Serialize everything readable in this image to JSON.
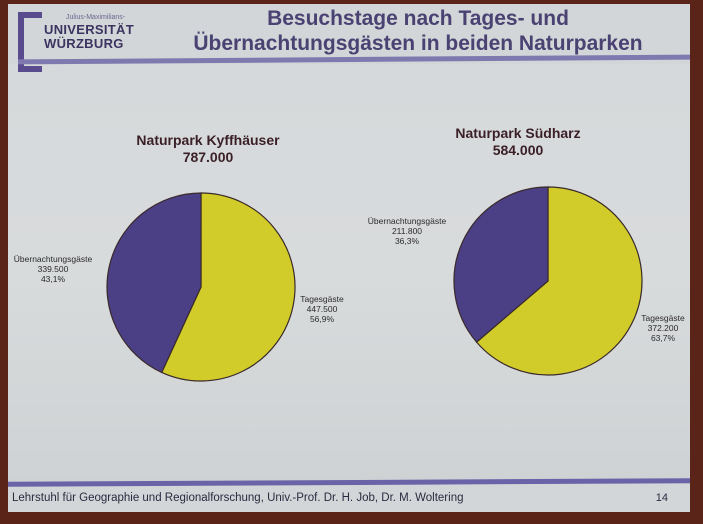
{
  "slide": {
    "logo": {
      "small_text": "Julius-Maximilians-",
      "line1": "UNIVERSITÄT",
      "line2": "WÜRZBURG"
    },
    "title_line1": "Besuchstage nach Tages- und",
    "title_line2": "Übernachtungsgästen in beiden Naturparken",
    "footer": "Lehrstuhl für Geographie und Regionalforschung, Univ.-Prof. Dr. H. Job, Dr. M. Woltering",
    "page_number": "14"
  },
  "colors": {
    "uebernachtung": "#4b3f86",
    "tages": "#d2cc2a",
    "accent": "#6a63a8"
  },
  "charts": [
    {
      "title": "Naturpark Kyffhäuser",
      "total": "787.000",
      "slices": [
        {
          "label": "Übernachtungsgäste",
          "value": "339.500",
          "pct": "43,1%"
        },
        {
          "label": "Tagesgäste",
          "value": "447.500",
          "pct": "56,9%"
        }
      ]
    },
    {
      "title": "Naturpark Südharz",
      "total": "584.000",
      "slices": [
        {
          "label": "Übernachtungsgäste",
          "value": "211.800",
          "pct": "36,3%"
        },
        {
          "label": "Tagesgäste",
          "value": "372.200",
          "pct": "63,7%"
        }
      ]
    }
  ],
  "chart_data": [
    {
      "type": "pie",
      "title": "Naturpark Kyffhäuser 787.000",
      "categories": [
        "Übernachtungsgäste",
        "Tagesgäste"
      ],
      "values": [
        339500,
        447500
      ],
      "percentages": [
        43.1,
        56.9
      ],
      "colors": [
        "#4b3f86",
        "#d2cc2a"
      ]
    },
    {
      "type": "pie",
      "title": "Naturpark Südharz 584.000",
      "categories": [
        "Übernachtungsgäste",
        "Tagesgäste"
      ],
      "values": [
        211800,
        372200
      ],
      "percentages": [
        36.3,
        63.7
      ],
      "colors": [
        "#4b3f86",
        "#d2cc2a"
      ]
    }
  ]
}
